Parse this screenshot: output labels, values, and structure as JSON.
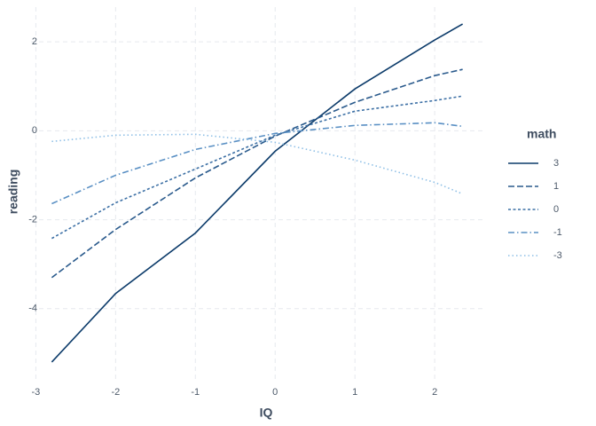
{
  "chart_data": {
    "type": "line",
    "xlabel": "IQ",
    "ylabel": "reading",
    "x": [
      -2.8,
      -2,
      -1,
      0,
      1,
      2,
      2.35
    ],
    "xlim": [
      -3.06,
      2.61
    ],
    "ylim": [
      -5.58,
      2.78
    ],
    "xticks": [
      -3,
      -2,
      -1,
      0,
      1,
      2
    ],
    "yticks": [
      -4,
      -2,
      0,
      2
    ],
    "grid": true,
    "legend_title": "math",
    "legend_position": "right",
    "series": [
      {
        "name": "3",
        "color": "#0c3b6a",
        "linetype": "solid",
        "values": [
          -5.2,
          -3.66,
          -2.3,
          -0.46,
          0.94,
          2.04,
          2.4
        ]
      },
      {
        "name": "1",
        "color": "#2a5a8c",
        "linetype": "longdash",
        "values": [
          -3.3,
          -2.22,
          -1.06,
          -0.12,
          0.64,
          1.24,
          1.38
        ]
      },
      {
        "name": "0",
        "color": "#3d70a5",
        "linetype": "dashed",
        "values": [
          -2.42,
          -1.62,
          -0.86,
          -0.1,
          0.44,
          0.68,
          0.78
        ]
      },
      {
        "name": "-1",
        "color": "#5a90c4",
        "linetype": "dotdash",
        "values": [
          -1.64,
          -1.0,
          -0.42,
          -0.06,
          0.12,
          0.18,
          0.1
        ]
      },
      {
        "name": "-3",
        "color": "#8ebfe6",
        "linetype": "dotted",
        "values": [
          -0.24,
          -0.1,
          -0.08,
          -0.26,
          -0.66,
          -1.16,
          -1.42
        ]
      }
    ]
  }
}
